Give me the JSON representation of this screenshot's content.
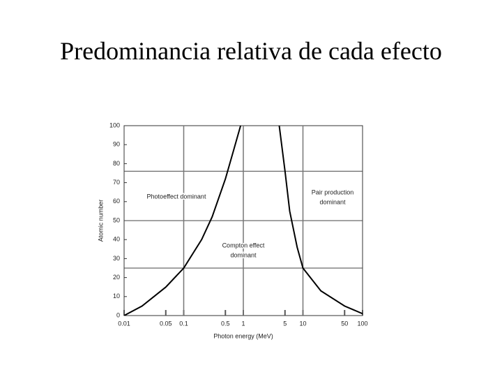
{
  "chart_data": {
    "type": "line",
    "title": "Predominancia relativa de cada efecto",
    "xlabel": "Photon energy (MeV)",
    "ylabel": "Atomic number",
    "log_x": true,
    "xlim": [
      0.01,
      100
    ],
    "xticks": [
      0.01,
      0.05,
      0.1,
      0.5,
      1,
      5,
      10,
      50,
      100
    ],
    "ylim": [
      0,
      100
    ],
    "yticks": [
      0,
      10,
      20,
      30,
      40,
      50,
      60,
      70,
      80,
      90,
      100
    ],
    "hlines": [
      76,
      50,
      25
    ],
    "vlines": [
      0.1,
      1,
      10
    ],
    "series": [
      {
        "color": "#000000",
        "x": [
          0.01,
          0.02,
          0.05,
          0.1,
          0.2,
          0.3,
          0.5,
          0.7,
          0.9
        ],
        "values": [
          0,
          5,
          15,
          25,
          40,
          52,
          72,
          88,
          100
        ]
      },
      {
        "color": "#000000",
        "x": [
          4,
          5,
          6,
          8,
          10,
          20,
          50,
          100
        ],
        "values": [
          100,
          76,
          55,
          36,
          25,
          13,
          5,
          1
        ]
      }
    ],
    "annotations": [
      [
        "Photoeffect dominant"
      ],
      [
        "Pair production",
        "dominant"
      ],
      [
        "Compton effect",
        "dominant"
      ]
    ]
  }
}
